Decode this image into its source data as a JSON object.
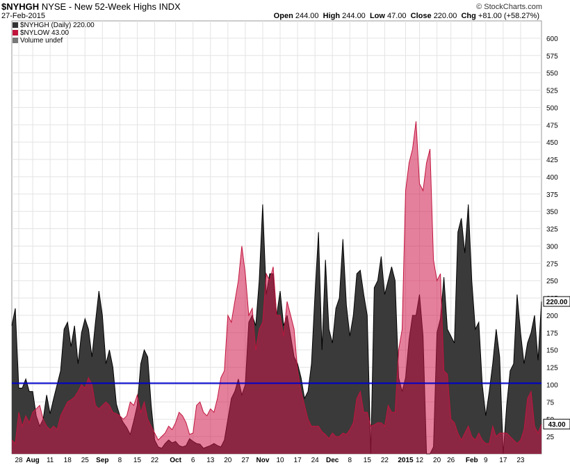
{
  "header": {
    "symbol": "$NYHGH",
    "description": "NYSE - New 52-Week Highs",
    "exchange": "INDX",
    "date": "27-Feb-2015",
    "brand": "© StockCharts.com",
    "ohlc": {
      "open_label": "Open",
      "open": "244.00",
      "high_label": "High",
      "high": "244.00",
      "low_label": "Low",
      "low": "47.00",
      "close_label": "Close",
      "close": "220.00",
      "chg_label": "Chg",
      "chg": "+81.00 (+58.27%)"
    }
  },
  "legend": [
    {
      "label": "$NYHGH (Daily) 220.00",
      "color": "#333333"
    },
    {
      "label": "$NYLOW 43.00",
      "color": "#c0143c"
    },
    {
      "label": "Volume undef",
      "color": "#777777"
    }
  ],
  "chart_data": {
    "type": "area",
    "ylim": [
      0,
      625
    ],
    "yticks": [
      25,
      50,
      75,
      100,
      125,
      150,
      175,
      200,
      225,
      250,
      275,
      300,
      325,
      350,
      375,
      400,
      425,
      450,
      475,
      500,
      525,
      550,
      575,
      600
    ],
    "xtick_labels": [
      "28",
      "Aug",
      "11",
      "18",
      "25",
      "Sep",
      "8",
      "15",
      "22",
      "Oct",
      "6",
      "13",
      "20",
      "27",
      "Nov",
      "10",
      "17",
      "24",
      "Dec",
      "8",
      "15",
      "22",
      "2015",
      "12",
      "20",
      "26",
      "Feb",
      "9",
      "17",
      "23"
    ],
    "xtick_index": [
      2,
      6,
      11,
      16,
      21,
      26,
      31,
      36,
      41,
      47,
      52,
      57,
      62,
      67,
      72,
      77,
      82,
      87,
      92,
      97,
      102,
      107,
      113,
      117,
      122,
      126,
      132,
      136,
      141,
      146
    ],
    "reference_line": {
      "value": 102,
      "color": "#0000cc"
    },
    "last_value_labels": {
      "nyhgh": "220.00",
      "nylow": "43.00"
    },
    "series": [
      {
        "name": "$NYHGH",
        "color": "#333333",
        "values": [
          185,
          210,
          95,
          95,
          108,
          90,
          90,
          55,
          40,
          50,
          85,
          58,
          80,
          100,
          120,
          180,
          190,
          155,
          185,
          130,
          175,
          195,
          180,
          140,
          190,
          235,
          200,
          130,
          150,
          125,
          72,
          55,
          45,
          38,
          28,
          48,
          70,
          130,
          150,
          140,
          70,
          20,
          10,
          8,
          15,
          20,
          16,
          18,
          12,
          10,
          12,
          22,
          18,
          15,
          14,
          8,
          10,
          12,
          15,
          12,
          10,
          20,
          50,
          80,
          90,
          108,
          85,
          100,
          190,
          200,
          185,
          250,
          360,
          230,
          260,
          260,
          200,
          235,
          185,
          200,
          170,
          140,
          130,
          110,
          80,
          90,
          130,
          230,
          320,
          150,
          280,
          180,
          160,
          210,
          225,
          310,
          215,
          170,
          200,
          260,
          265,
          230,
          200,
          0,
          240,
          250,
          285,
          230,
          250,
          270,
          250,
          110,
          90,
          110,
          165,
          200,
          200,
          230,
          170,
          0,
          0,
          10,
          175,
          195,
          255,
          180,
          170,
          160,
          320,
          340,
          290,
          360,
          250,
          180,
          190,
          100,
          55,
          90,
          130,
          180,
          140,
          0,
          70,
          120,
          130,
          230,
          175,
          130,
          160,
          175,
          200,
          135,
          220
        ]
      },
      {
        "name": "$NYLOW",
        "color": "#c0143c",
        "values": [
          20,
          15,
          60,
          40,
          55,
          45,
          60,
          65,
          70,
          50,
          40,
          35,
          40,
          35,
          55,
          65,
          75,
          78,
          82,
          90,
          100,
          95,
          110,
          100,
          70,
          65,
          70,
          75,
          70,
          60,
          58,
          55,
          50,
          55,
          75,
          70,
          85,
          60,
          75,
          50,
          40,
          30,
          20,
          25,
          30,
          40,
          35,
          45,
          60,
          55,
          45,
          28,
          30,
          70,
          75,
          60,
          55,
          65,
          60,
          80,
          110,
          120,
          200,
          190,
          220,
          250,
          300,
          260,
          200,
          210,
          150,
          180,
          190,
          260,
          250,
          270,
          200,
          200,
          170,
          220,
          200,
          180,
          120,
          90,
          70,
          50,
          40,
          40,
          40,
          32,
          28,
          22,
          30,
          25,
          25,
          30,
          28,
          35,
          45,
          80,
          90,
          60,
          60,
          40,
          42,
          45,
          45,
          40,
          70,
          60,
          60,
          150,
          180,
          380,
          420,
          440,
          480,
          390,
          380,
          420,
          440,
          280,
          250,
          260,
          120,
          115,
          50,
          45,
          30,
          20,
          30,
          40,
          25,
          20,
          30,
          20,
          15,
          15,
          40,
          25,
          30,
          30,
          30,
          25,
          20,
          15,
          20,
          35,
          80,
          90,
          40,
          30,
          43
        ]
      }
    ]
  }
}
